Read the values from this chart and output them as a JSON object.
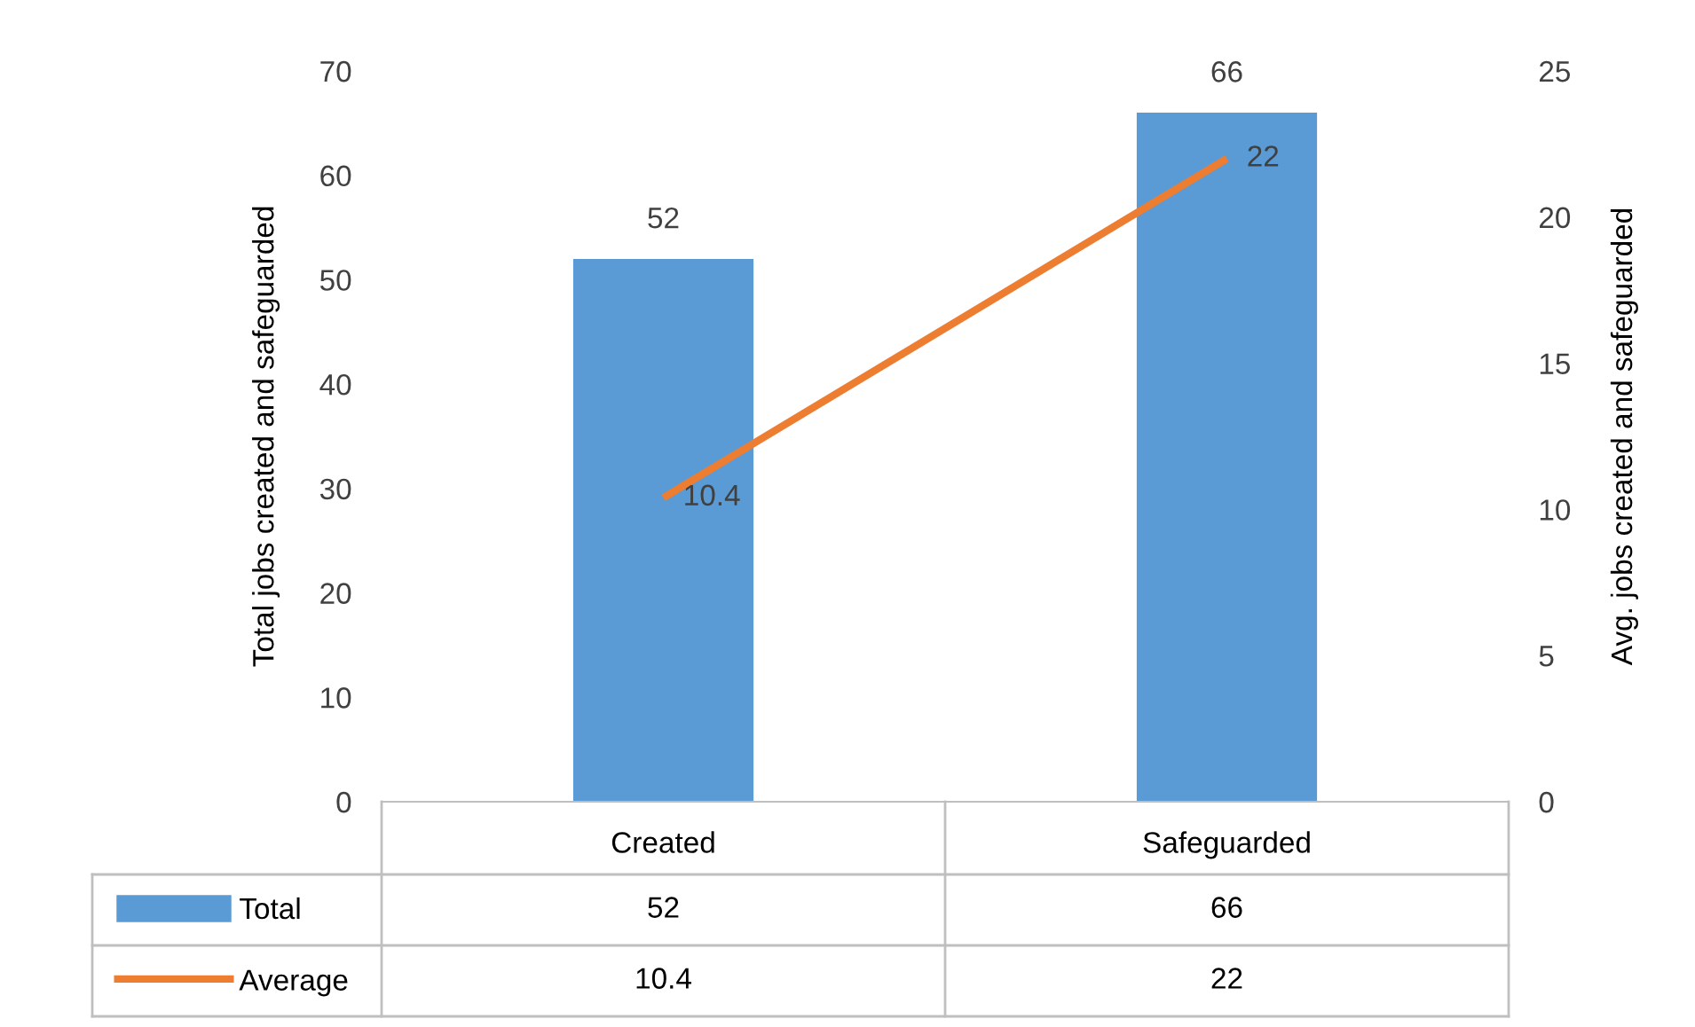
{
  "chart_data": {
    "type": "bar",
    "categories": [
      "Created",
      "Safeguarded"
    ],
    "series": [
      {
        "name": "Total",
        "color": "#5b9bd5",
        "values": [
          52,
          66
        ],
        "value_labels": [
          "52",
          "66"
        ]
      },
      {
        "name": "Average",
        "type": "line",
        "axis": "y2",
        "color": "#ed7d31",
        "values": [
          10.4,
          22
        ],
        "value_labels": [
          "10.4",
          "22"
        ]
      }
    ],
    "ylabel": "Total jobs created and safeguarded",
    "y2label": "Avg. jobs created and safeguarded",
    "ylim": [
      0,
      70
    ],
    "yticks": [
      0,
      10,
      20,
      30,
      40,
      50,
      60,
      70
    ],
    "y2lim": [
      0,
      25
    ],
    "y2ticks": [
      0,
      5,
      10,
      15,
      20,
      25
    ],
    "annotations": [
      "52",
      "66",
      "10.4",
      "22"
    ],
    "grid": false,
    "legend": "bottom",
    "marker": "none",
    "line_style": "solid"
  }
}
